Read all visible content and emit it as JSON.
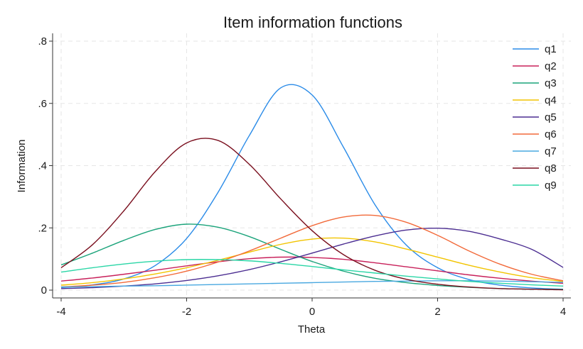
{
  "chart_data": {
    "type": "line",
    "title": "Item information functions",
    "xlabel": "Theta",
    "ylabel": "Information",
    "xlim": [
      -4,
      4
    ],
    "ylim": [
      0,
      0.8
    ],
    "xticks": [
      {
        "value": -4,
        "label": "-4"
      },
      {
        "value": -2,
        "label": "-2"
      },
      {
        "value": 0,
        "label": "0"
      },
      {
        "value": 2,
        "label": "2"
      },
      {
        "value": 4,
        "label": "4"
      }
    ],
    "yticks": [
      {
        "value": 0,
        "label": "0"
      },
      {
        "value": 0.2,
        "label": ".2"
      },
      {
        "value": 0.4,
        "label": ".4"
      },
      {
        "value": 0.6,
        "label": ".6"
      },
      {
        "value": 0.8,
        "label": ".8"
      }
    ],
    "grid": true,
    "legend_position": "top-right",
    "x": [
      -4,
      -3.5,
      -3,
      -2.5,
      -2,
      -1.5,
      -1,
      -0.5,
      0,
      0.5,
      1,
      1.5,
      2,
      2.5,
      3,
      3.5,
      4
    ],
    "series": [
      {
        "name": "q1",
        "color": "#2a8be8",
        "values": [
          0.008,
          0.017,
          0.036,
          0.079,
          0.166,
          0.314,
          0.497,
          0.65,
          0.627,
          0.459,
          0.275,
          0.145,
          0.072,
          0.034,
          0.016,
          0.007,
          0.003
        ]
      },
      {
        "name": "q2",
        "color": "#c8205a",
        "values": [
          0.029,
          0.039,
          0.051,
          0.064,
          0.078,
          0.091,
          0.101,
          0.106,
          0.105,
          0.099,
          0.088,
          0.075,
          0.062,
          0.049,
          0.038,
          0.029,
          0.022
        ]
      },
      {
        "name": "q3",
        "color": "#1aa37a",
        "values": [
          0.081,
          0.119,
          0.16,
          0.195,
          0.212,
          0.202,
          0.172,
          0.131,
          0.092,
          0.061,
          0.038,
          0.024,
          0.015,
          0.009,
          0.005,
          0.003,
          0.002
        ]
      },
      {
        "name": "q4",
        "color": "#f2c400",
        "values": [
          0.016,
          0.024,
          0.036,
          0.052,
          0.072,
          0.096,
          0.122,
          0.147,
          0.164,
          0.167,
          0.155,
          0.132,
          0.106,
          0.08,
          0.058,
          0.04,
          0.028
        ]
      },
      {
        "name": "q5",
        "color": "#4b2d91",
        "values": [
          0.005,
          0.008,
          0.013,
          0.02,
          0.031,
          0.046,
          0.066,
          0.091,
          0.119,
          0.148,
          0.174,
          0.193,
          0.199,
          0.189,
          0.164,
          0.131,
          0.073
        ]
      },
      {
        "name": "q6",
        "color": "#f26a3a",
        "values": [
          0.01,
          0.016,
          0.025,
          0.04,
          0.061,
          0.09,
          0.126,
          0.167,
          0.207,
          0.235,
          0.24,
          0.218,
          0.176,
          0.126,
          0.083,
          0.051,
          0.03
        ]
      },
      {
        "name": "q7",
        "color": "#49a8e0",
        "values": [
          0.01,
          0.011,
          0.013,
          0.014,
          0.016,
          0.018,
          0.02,
          0.022,
          0.024,
          0.026,
          0.028,
          0.029,
          0.03,
          0.03,
          0.029,
          0.027,
          0.025
        ]
      },
      {
        "name": "q8",
        "color": "#7a0f1e",
        "values": [
          0.072,
          0.146,
          0.255,
          0.381,
          0.473,
          0.481,
          0.404,
          0.293,
          0.191,
          0.114,
          0.064,
          0.035,
          0.019,
          0.01,
          0.005,
          0.003,
          0.001
        ]
      },
      {
        "name": "q9",
        "color": "#2ad6a6",
        "values": [
          0.058,
          0.072,
          0.084,
          0.093,
          0.098,
          0.098,
          0.094,
          0.086,
          0.076,
          0.065,
          0.055,
          0.045,
          0.036,
          0.028,
          0.022,
          0.017,
          0.013
        ]
      }
    ]
  }
}
